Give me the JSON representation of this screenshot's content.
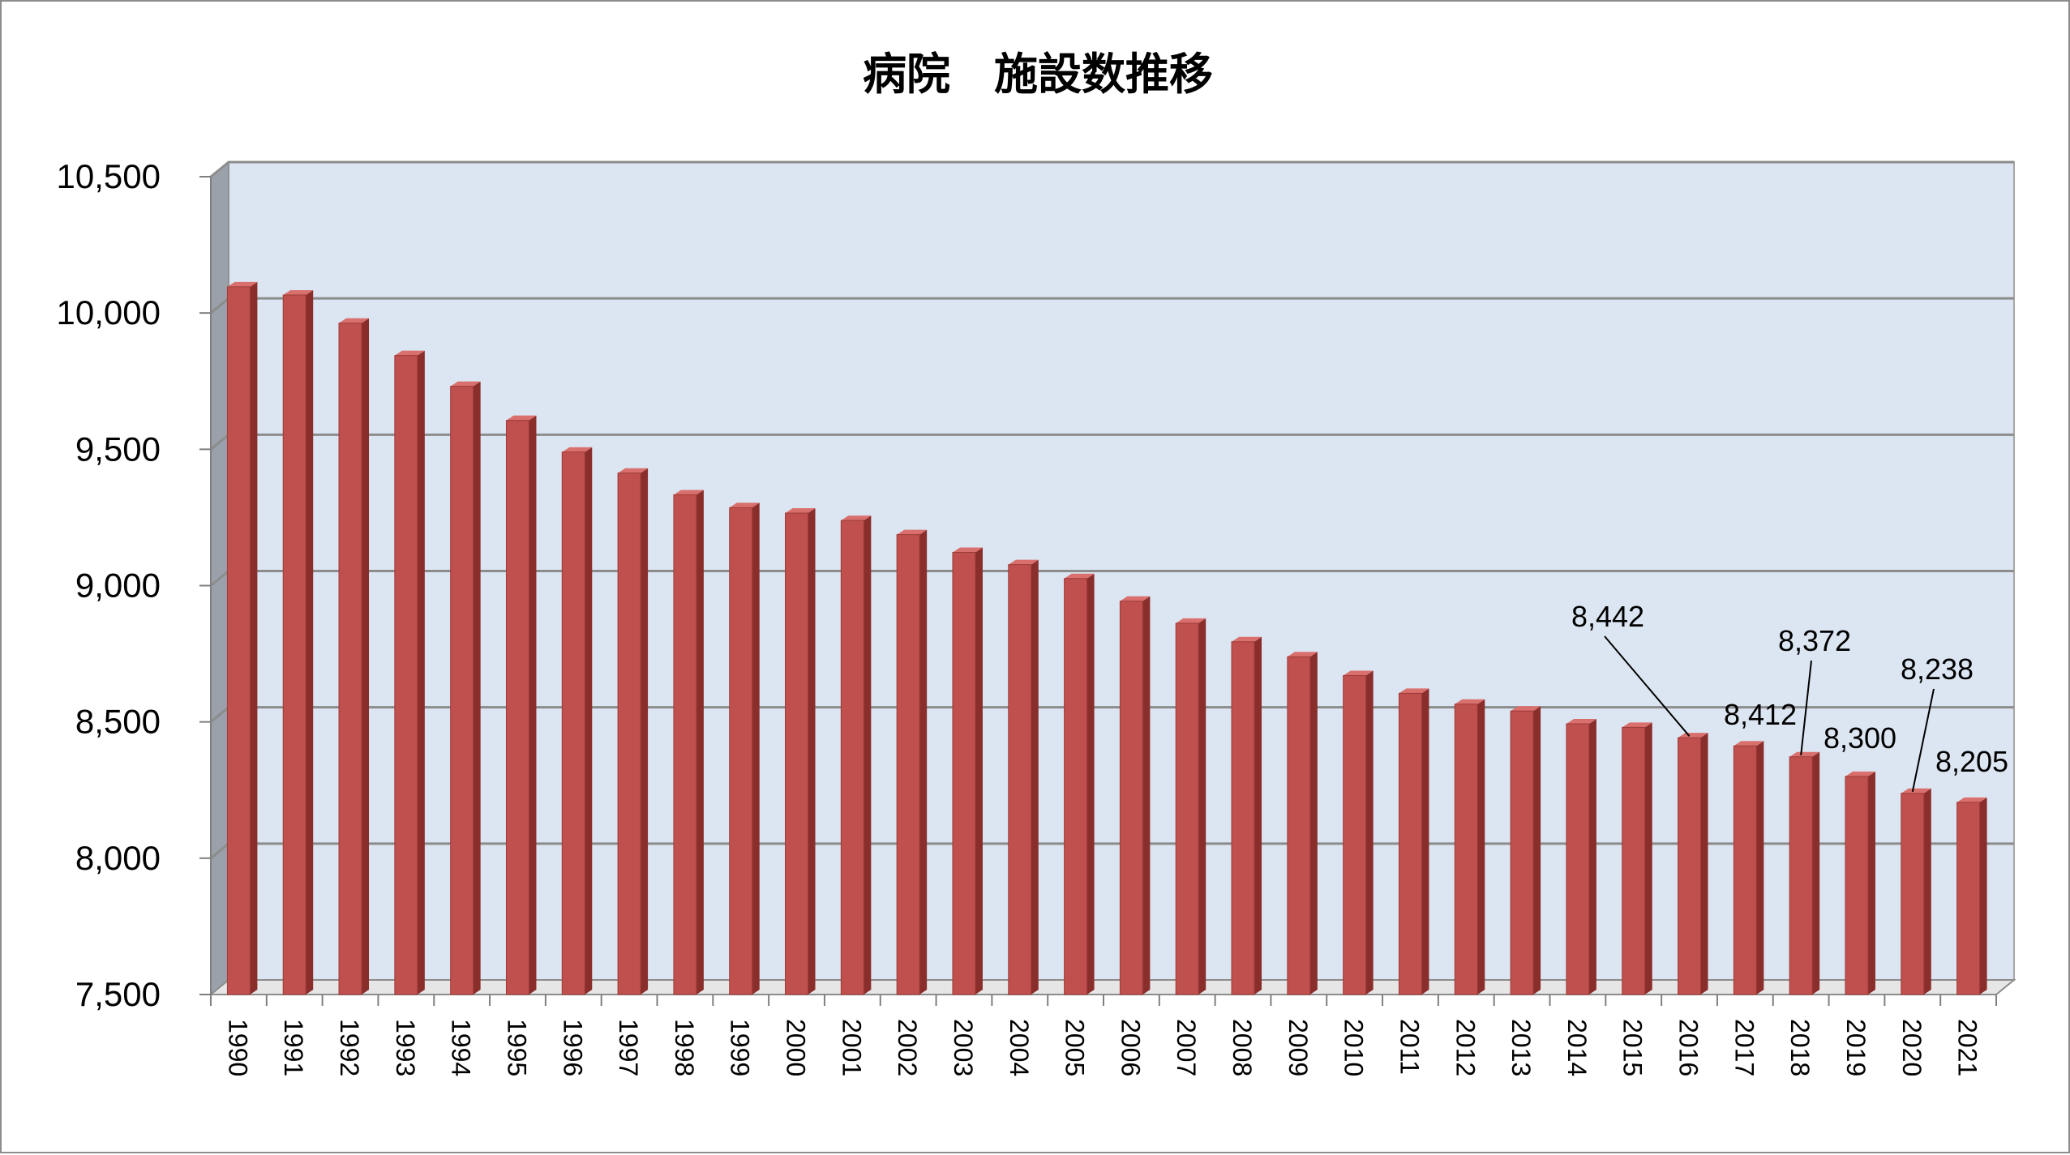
{
  "chart_data": {
    "type": "bar",
    "title": "病院　施設数推移",
    "xlabel": "",
    "ylabel": "",
    "ylim": [
      7500,
      10500
    ],
    "yticks": [
      7500,
      8000,
      8500,
      9000,
      9500,
      10000,
      10500
    ],
    "ytick_labels": [
      "7,500",
      "8,000",
      "8,500",
      "9,000",
      "9,500",
      "10,000",
      "10,500"
    ],
    "categories": [
      "1990",
      "1991",
      "1992",
      "1993",
      "1994",
      "1995",
      "1996",
      "1997",
      "1998",
      "1999",
      "2000",
      "2001",
      "2002",
      "2003",
      "2004",
      "2005",
      "2006",
      "2007",
      "2008",
      "2009",
      "2010",
      "2011",
      "2012",
      "2013",
      "2014",
      "2015",
      "2016",
      "2017",
      "2018",
      "2019",
      "2020",
      "2021"
    ],
    "values": [
      10096,
      10066,
      9963,
      9844,
      9731,
      9606,
      9490,
      9413,
      9333,
      9286,
      9266,
      9239,
      9187,
      9122,
      9077,
      9026,
      8943,
      8862,
      8794,
      8739,
      8670,
      8605,
      8565,
      8540,
      8493,
      8480,
      8442,
      8412,
      8372,
      8300,
      8238,
      8205
    ],
    "data_labels": [
      {
        "category": "2016",
        "text": "8,442"
      },
      {
        "category": "2017",
        "text": "8,412"
      },
      {
        "category": "2018",
        "text": "8,372"
      },
      {
        "category": "2019",
        "text": "8,300"
      },
      {
        "category": "2020",
        "text": "8,238"
      },
      {
        "category": "2021",
        "text": "8,205"
      }
    ],
    "grid": true,
    "legend": "none",
    "colors": {
      "bar_front": "#c0504d",
      "bar_side": "#8a2e2c",
      "bar_top": "#d9706d",
      "plot_back": "#dce6f2",
      "plot_side": "#9aa1aa",
      "grid": "#8c8c8c"
    }
  }
}
